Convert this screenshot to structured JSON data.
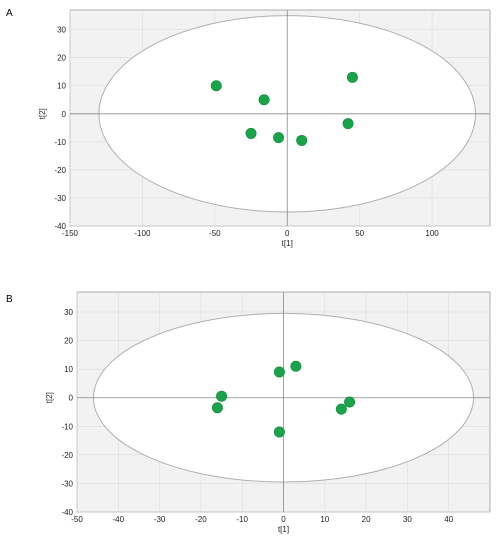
{
  "chart_data": [
    {
      "type": "scatter",
      "panel_label": "A",
      "xlabel": "t[1]",
      "ylabel": "t[2]",
      "xlim": [
        -150,
        140
      ],
      "ylim": [
        -40,
        37
      ],
      "xticks": [
        -150,
        -100,
        -50,
        0,
        50,
        100
      ],
      "yticks": [
        -40,
        -30,
        -20,
        -10,
        0,
        10,
        20,
        30
      ],
      "ellipse": {
        "rx": 130,
        "ry": 35
      },
      "grid": true,
      "point_color": "#1aa34a",
      "points": [
        {
          "x": -49,
          "y": 10
        },
        {
          "x": -16,
          "y": 5
        },
        {
          "x": 45,
          "y": 13
        },
        {
          "x": -25,
          "y": -7
        },
        {
          "x": -6,
          "y": -8.5
        },
        {
          "x": 10,
          "y": -9.5
        },
        {
          "x": 42,
          "y": -3.5
        }
      ]
    },
    {
      "type": "scatter",
      "panel_label": "B",
      "xlabel": "t[1]",
      "ylabel": "t[2]",
      "xlim": [
        -50,
        50
      ],
      "ylim": [
        -40,
        37
      ],
      "xticks": [
        -50,
        -40,
        -30,
        -20,
        -10,
        0,
        10,
        20,
        30,
        40
      ],
      "yticks": [
        -40,
        -30,
        -20,
        -10,
        0,
        10,
        20,
        30
      ],
      "ellipse": {
        "rx": 46,
        "ry": 29.5
      },
      "grid": true,
      "point_color": "#1aa34a",
      "points": [
        {
          "x": -1,
          "y": 9
        },
        {
          "x": 3,
          "y": 11
        },
        {
          "x": -15,
          "y": 0.5
        },
        {
          "x": -16,
          "y": -3.5
        },
        {
          "x": -1,
          "y": -12
        },
        {
          "x": 14,
          "y": -4
        },
        {
          "x": 16,
          "y": -1.5
        }
      ]
    }
  ]
}
